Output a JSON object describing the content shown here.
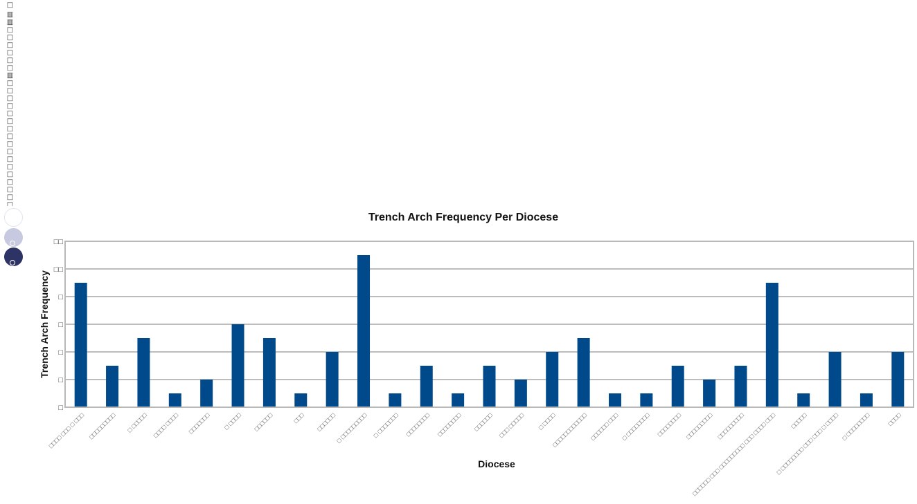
{
  "sidebar": {
    "text": "□ ▥▥□□□□□□▥□□□□□□□□□□□□□□□□□□□□□□□□□□□□□□□□□□□□□□□□□□□□□□□□□",
    "dots": [
      {
        "color": "#ffffff"
      },
      {
        "color": "#c7c9e0"
      },
      {
        "color": "#2e3365"
      }
    ]
  },
  "chart_data": {
    "type": "bar",
    "title": "Trench Arch Frequency Per Diocese",
    "xlabel": "Diocese",
    "ylabel": "Trench Arch Frequency",
    "ylim": [
      0,
      12
    ],
    "y_ticks": [
      {
        "value": 0,
        "label": "□"
      },
      {
        "value": 2,
        "label": "□"
      },
      {
        "value": 4,
        "label": "□"
      },
      {
        "value": 6,
        "label": "□"
      },
      {
        "value": 8,
        "label": "□"
      },
      {
        "value": 10,
        "label": "□□"
      },
      {
        "value": 12,
        "label": "□□"
      }
    ],
    "grid": true,
    "bar_color": "#004a8c",
    "categories": [
      "□□□□ □□□ □ □□□",
      "□□□□□□□□□",
      "□ □□□□□",
      "□□□□ □□□□",
      "□□□□□□□",
      "□ □□□□",
      "□□□□□□",
      "□□□",
      "□□□□□□",
      "□ □□□□□□□□□",
      "□ □□□□□□□",
      "□□□□□□□□",
      "□□□□□□□□",
      "□□□□□□",
      "□□□ □□□□□",
      "□ □□□□",
      "□□□□□□□□□□□□",
      "□□□□□□ □□□",
      "□ □□□□□□□□",
      "□□□□□□□□",
      "□□□□□□□□□",
      "□□□□□□□□□",
      "□□□□□□ □□□ □□□□□□□□□ □□□ □□□□ □□□",
      "□□□□□",
      "□ □□□□□□□□ □□□ □□□ □ □□□□",
      "□ □□□□□□□□",
      "□□□□"
    ],
    "values": [
      9,
      3,
      5,
      1,
      2,
      6,
      5,
      1,
      4,
      11,
      1,
      3,
      1,
      3,
      2,
      4,
      5,
      1,
      1,
      3,
      2,
      3,
      9,
      1,
      4,
      1,
      4
    ]
  }
}
